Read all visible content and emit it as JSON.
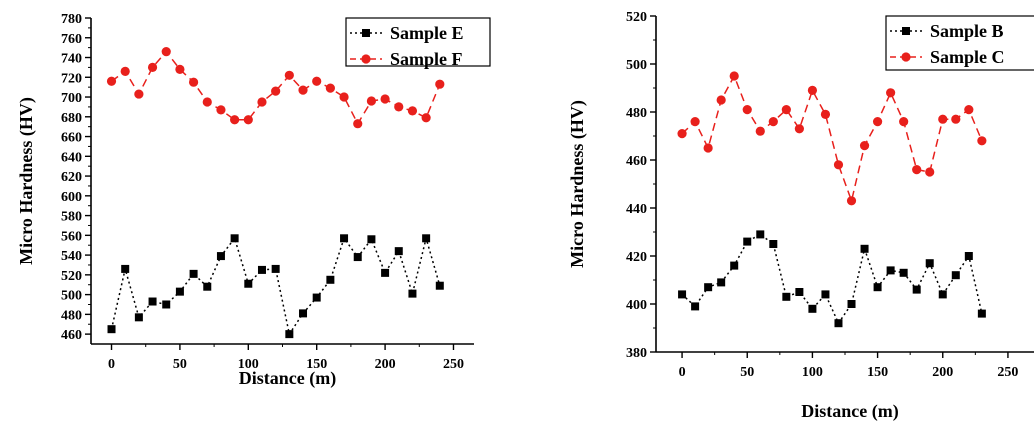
{
  "chart_data": [
    {
      "type": "line",
      "xlabel": "Distance (m)",
      "ylabel": "Micro Hardness (HV)",
      "xlim": [
        -15,
        265
      ],
      "ylim": [
        450,
        780
      ],
      "xticks": [
        0,
        50,
        100,
        150,
        200,
        250
      ],
      "yticks": [
        460,
        480,
        500,
        520,
        540,
        560,
        580,
        600,
        620,
        640,
        660,
        680,
        700,
        720,
        740,
        760,
        780
      ],
      "legend_position": "top-right",
      "series": [
        {
          "name": "Sample E",
          "color": "#000000",
          "marker": "square",
          "line_style": "dotted",
          "x": [
            0,
            10,
            20,
            30,
            40,
            50,
            60,
            70,
            80,
            90,
            100,
            110,
            120,
            130,
            140,
            150,
            160,
            170,
            180,
            190,
            200,
            210,
            220,
            230,
            240
          ],
          "y": [
            465,
            526,
            477,
            493,
            490,
            503,
            521,
            508,
            539,
            557,
            511,
            525,
            526,
            460,
            481,
            497,
            515,
            557,
            538,
            556,
            522,
            544,
            501,
            557,
            509
          ]
        },
        {
          "name": "Sample F",
          "color": "#e8201c",
          "marker": "circle",
          "line_style": "dashed",
          "x": [
            0,
            10,
            20,
            30,
            40,
            50,
            60,
            70,
            80,
            90,
            100,
            110,
            120,
            130,
            140,
            150,
            160,
            170,
            180,
            190,
            200,
            210,
            220,
            230,
            240
          ],
          "y": [
            716,
            726,
            703,
            730,
            746,
            728,
            715,
            695,
            687,
            677,
            677,
            695,
            706,
            722,
            707,
            716,
            709,
            700,
            673,
            696,
            698,
            690,
            686,
            679,
            713
          ]
        }
      ]
    },
    {
      "type": "line",
      "xlabel": "Distance (m)",
      "ylabel": "Micro Hardness (HV)",
      "xlim": [
        -20,
        270
      ],
      "ylim": [
        380,
        520
      ],
      "xticks": [
        0,
        50,
        100,
        150,
        200,
        250
      ],
      "yticks": [
        380,
        400,
        420,
        440,
        460,
        480,
        500,
        520
      ],
      "legend_position": "top-right",
      "series": [
        {
          "name": "Sample B",
          "color": "#000000",
          "marker": "square",
          "line_style": "dotted",
          "x": [
            0,
            10,
            20,
            30,
            40,
            50,
            60,
            70,
            80,
            90,
            100,
            110,
            120,
            130,
            140,
            150,
            160,
            170,
            180,
            190,
            200,
            210,
            220,
            230
          ],
          "y": [
            404,
            399,
            407,
            409,
            416,
            426,
            429,
            425,
            403,
            405,
            398,
            404,
            392,
            400,
            423,
            407,
            414,
            413,
            406,
            417,
            404,
            412,
            420,
            396
          ]
        },
        {
          "name": "Sample C",
          "color": "#e8201c",
          "marker": "circle",
          "line_style": "dashed",
          "x": [
            0,
            10,
            20,
            30,
            40,
            50,
            60,
            70,
            80,
            90,
            100,
            110,
            120,
            130,
            140,
            150,
            160,
            170,
            180,
            190,
            200,
            210,
            220,
            230
          ],
          "y": [
            471,
            476,
            465,
            485,
            495,
            481,
            472,
            476,
            481,
            473,
            489,
            479,
            458,
            443,
            466,
            476,
            488,
            476,
            456,
            455,
            477,
            477,
            481,
            468
          ]
        }
      ]
    }
  ]
}
